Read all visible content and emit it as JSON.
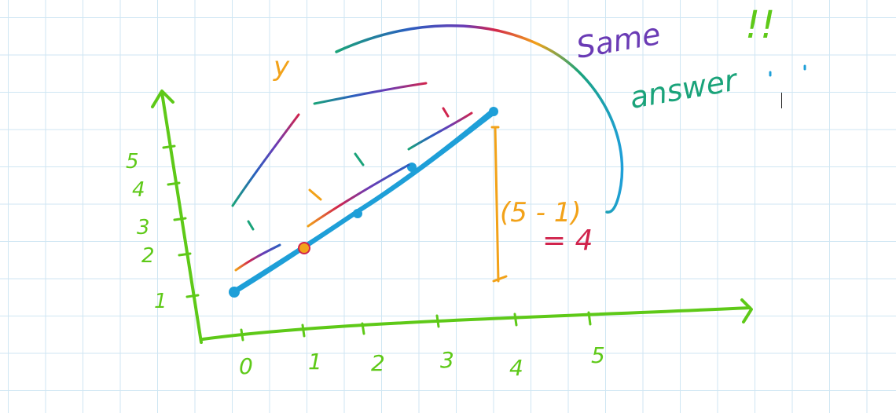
{
  "axes": {
    "x_ticks": [
      "0",
      "1",
      "2",
      "3",
      "4",
      "5"
    ],
    "y_ticks": [
      "1",
      "2",
      "3",
      "4",
      "5"
    ]
  },
  "annotations": {
    "y_label": "y",
    "expression": "(5 - 1)",
    "equals": "= 4",
    "same_line1": "Same",
    "same_line2": "answer",
    "exclaim": "!!"
  },
  "colors": {
    "axis": "#5ec918",
    "line": "#1e9fd8",
    "orange": "#f2a219",
    "teal": "#1aa37a",
    "purple": "#6a3bb5",
    "red": "#d0244d",
    "blue": "#2a5fbf"
  }
}
